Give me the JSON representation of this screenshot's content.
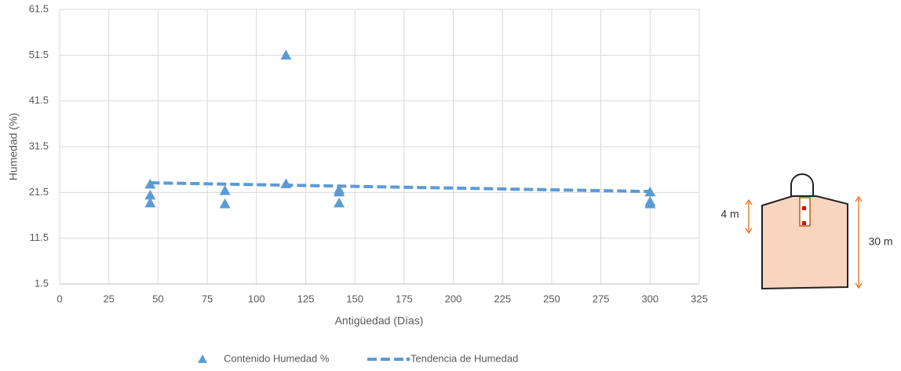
{
  "chart_data": {
    "type": "scatter",
    "x_label": "Antigüedad (Días)",
    "y_label": "Humedad (%)",
    "xlim": [
      0,
      325
    ],
    "xticks": [
      0,
      25,
      50,
      75,
      100,
      125,
      150,
      175,
      200,
      225,
      250,
      275,
      300,
      325
    ],
    "ylim": [
      1.5,
      61.5
    ],
    "yticks": [
      1.5,
      11.5,
      21.5,
      31.5,
      41.5,
      51.5,
      61.5
    ],
    "grid": true,
    "series": [
      {
        "name": "Contenido  Humedad %",
        "color": "#5b9bd5",
        "style": "markers",
        "x": [
          46,
          46,
          46,
          84,
          84,
          115,
          115,
          142,
          142,
          142,
          300,
          300,
          300
        ],
        "values": [
          23.3,
          20.9,
          19.2,
          21.9,
          19.0,
          51.5,
          23.4,
          22.1,
          21.6,
          19.2,
          21.6,
          19.5,
          19.0
        ]
      },
      {
        "name": "Tendencia de Humedad",
        "color": "#5b9bd5",
        "style": "dashed-line",
        "x": [
          46,
          300
        ],
        "values": [
          23.6,
          21.7
        ]
      }
    ]
  },
  "diagram": {
    "labels": [
      "4 m",
      "30 m"
    ]
  }
}
